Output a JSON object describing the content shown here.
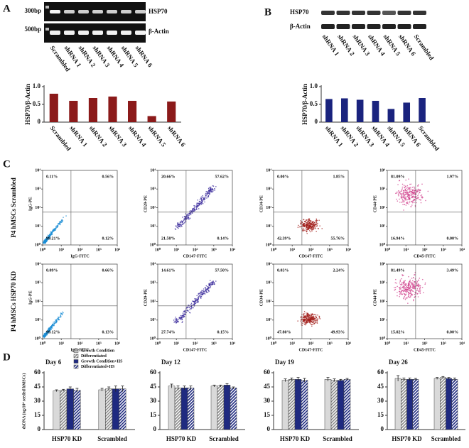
{
  "panel_labels": [
    "A",
    "B",
    "C",
    "D"
  ],
  "gel_a": {
    "markers": [
      "300bp",
      "500bp"
    ],
    "rows": [
      "HSP70",
      "β-Actin"
    ],
    "lanes": [
      "Scrambled",
      "shRNA 1",
      "shRNA 2",
      "shRNA 3",
      "shRNA 4",
      "shRNA 5",
      "shRNA 6"
    ]
  },
  "gel_b": {
    "rows": [
      "HSP70",
      "β-Actin"
    ],
    "lanes": [
      "shRNA 1",
      "shRNA 2",
      "shRNA 3",
      "shRNA 4",
      "shRNA 5",
      "shRNA 6",
      "Scrambled"
    ]
  },
  "flow": {
    "rows": [
      "P4 hMSCs Scrambled",
      "P4 hMSCs HSP70 KD"
    ],
    "ticks": [
      {
        "value": 1,
        "label": "10⁰"
      },
      {
        "value": 10,
        "label": "10¹"
      },
      {
        "value": 100,
        "label": "10²"
      },
      {
        "value": 1000,
        "label": "10³"
      },
      {
        "value": 10000,
        "label": "10⁴"
      }
    ],
    "plots": [
      [
        {
          "x_label": "IgG-FITC",
          "y_label": "IgG-PE",
          "quadrants": [
            "0.11%",
            "0.56%",
            "99.21%",
            "0.12%"
          ],
          "color": "#1e8fd6"
        },
        {
          "x_label": "CD147-FITC",
          "y_label": "CD29-PE",
          "quadrants": [
            "20.66%",
            "57.62%",
            "21.58%",
            "0.14%"
          ],
          "color": "#3b2b9c"
        },
        {
          "x_label": "CD147-FITC",
          "y_label": "CD34-PE",
          "quadrants": [
            "0.00%",
            "1.85%",
            "42.39%",
            "55.76%"
          ],
          "color": "#a3201c"
        },
        {
          "x_label": "CD45-FITC",
          "y_label": "CD44-PE",
          "quadrants": [
            "81.09%",
            "1.97%",
            "16.94%",
            "0.00%"
          ],
          "color": "#d0408c"
        }
      ],
      [
        {
          "x_label": "IgG-FITC",
          "y_label": "IgG-PE",
          "quadrants": [
            "0.09%",
            "0.66%",
            "99.12%",
            "0.13%"
          ],
          "color": "#1e8fd6"
        },
        {
          "x_label": "CD147-FITC",
          "y_label": "CD29-PE",
          "quadrants": [
            "14.61%",
            "57.50%",
            "27.74%",
            "0.15%"
          ],
          "color": "#3b2b9c"
        },
        {
          "x_label": "CD147-FITC",
          "y_label": "CD34-PE",
          "quadrants": [
            "0.03%",
            "2.24%",
            "47.80%",
            "49.93%"
          ],
          "color": "#a3201c"
        },
        {
          "x_label": "CD45-FITC",
          "y_label": "CD44-PE",
          "quadrants": [
            "81.49%",
            "3.49%",
            "15.02%",
            "0.00%"
          ],
          "color": "#d0408c"
        }
      ]
    ]
  },
  "chart_data": [
    {
      "type": "bar",
      "ylabel": "HSP70/β-Actin",
      "categories": [
        "Scrambled",
        "shRNA 1",
        "shRNA 2",
        "shRNA 3",
        "shRNA 4",
        "shRNA 5",
        "shRNA 6"
      ],
      "values": [
        0.8,
        0.6,
        0.68,
        0.72,
        0.6,
        0.17,
        0.58
      ],
      "color": "#8b1a1a",
      "ylim": [
        0,
        1
      ],
      "yticks": [
        0,
        0.5,
        {
          "value": 1,
          "label": "1.0"
        }
      ]
    },
    {
      "type": "bar",
      "ylabel": "HSP70/β-Actin",
      "categories": [
        "shRNA 1",
        "shRNA 2",
        "shRNA 3",
        "shRNA 4",
        "shRNA 5",
        "shRNA 6",
        "Scrambled"
      ],
      "values": [
        0.65,
        0.67,
        0.63,
        0.6,
        0.37,
        0.55,
        0.68
      ],
      "color": "#1a237e",
      "ylim": [
        0,
        1
      ],
      "yticks": [
        0,
        0.5,
        {
          "value": 1,
          "label": "1.0"
        }
      ]
    },
    {
      "type": "bar",
      "title": "Day 6",
      "ylabel": "dsDNA (ng/10⁴ seeded hMSCs)",
      "categories": [
        "HSP70 KD",
        "Scrambled"
      ],
      "ylim": [
        0,
        60
      ],
      "yticks": [
        0,
        15,
        30,
        45,
        60
      ],
      "series": [
        {
          "name": "Growth Condition",
          "color": "#d9d9d9",
          "values": [
            41,
            42
          ],
          "errors": [
            1,
            1.5
          ]
        },
        {
          "name": "Differentiated",
          "color": "#8a8a8a",
          "pattern": "hatch",
          "values": [
            41.5,
            43
          ],
          "errors": [
            1,
            2
          ]
        },
        {
          "name": "Growth Condition+HS",
          "color": "#1f2a80",
          "values": [
            43,
            43
          ],
          "errors": [
            2,
            3
          ]
        },
        {
          "name": "Differentiated+HS",
          "color": "#1f2a80",
          "pattern": "hatch",
          "values": [
            41.5,
            43
          ],
          "errors": [
            2,
            3
          ]
        }
      ]
    },
    {
      "type": "bar",
      "title": "Day 12",
      "categories": [
        "HSP70 KD",
        "Scrambled"
      ],
      "ylim": [
        0,
        60
      ],
      "yticks": [
        0,
        15,
        30,
        45,
        60
      ],
      "series": [
        {
          "color": "#d9d9d9",
          "values": [
            46,
            46
          ],
          "errors": [
            2,
            1
          ]
        },
        {
          "color": "#8a8a8a",
          "pattern": "hatch",
          "values": [
            44,
            46
          ],
          "errors": [
            2,
            1
          ]
        },
        {
          "color": "#1f2a80",
          "values": [
            44,
            47
          ],
          "errors": [
            2,
            1.5
          ]
        },
        {
          "color": "#1f2a80",
          "pattern": "hatch",
          "values": [
            44,
            44
          ],
          "errors": [
            2,
            1
          ]
        }
      ]
    },
    {
      "type": "bar",
      "title": "Day 19",
      "categories": [
        "HSP70 KD",
        "Scrambled"
      ],
      "ylim": [
        0,
        60
      ],
      "yticks": [
        0,
        15,
        30,
        45,
        60
      ],
      "series": [
        {
          "color": "#d9d9d9",
          "values": [
            52,
            53
          ],
          "errors": [
            1.5,
            2
          ]
        },
        {
          "color": "#8a8a8a",
          "pattern": "hatch",
          "values": [
            53,
            52
          ],
          "errors": [
            1.5,
            1.5
          ]
        },
        {
          "color": "#1f2a80",
          "values": [
            53,
            52
          ],
          "errors": [
            2,
            1
          ]
        },
        {
          "color": "#1f2a80",
          "pattern": "hatch",
          "values": [
            52,
            53
          ],
          "errors": [
            2,
            1
          ]
        }
      ]
    },
    {
      "type": "bar",
      "title": "Day 26",
      "categories": [
        "HSP70 KD",
        "Scrambled"
      ],
      "ylim": [
        0,
        60
      ],
      "yticks": [
        0,
        15,
        30,
        45,
        60
      ],
      "series": [
        {
          "color": "#d9d9d9",
          "values": [
            54,
            54
          ],
          "errors": [
            3,
            1
          ]
        },
        {
          "color": "#8a8a8a",
          "pattern": "hatch",
          "values": [
            53,
            55
          ],
          "errors": [
            1.5,
            1
          ]
        },
        {
          "color": "#1f2a80",
          "values": [
            53,
            54
          ],
          "errors": [
            1.5,
            1
          ]
        },
        {
          "color": "#1f2a80",
          "pattern": "hatch",
          "values": [
            53,
            53
          ],
          "errors": [
            1,
            1.5
          ]
        }
      ]
    }
  ]
}
